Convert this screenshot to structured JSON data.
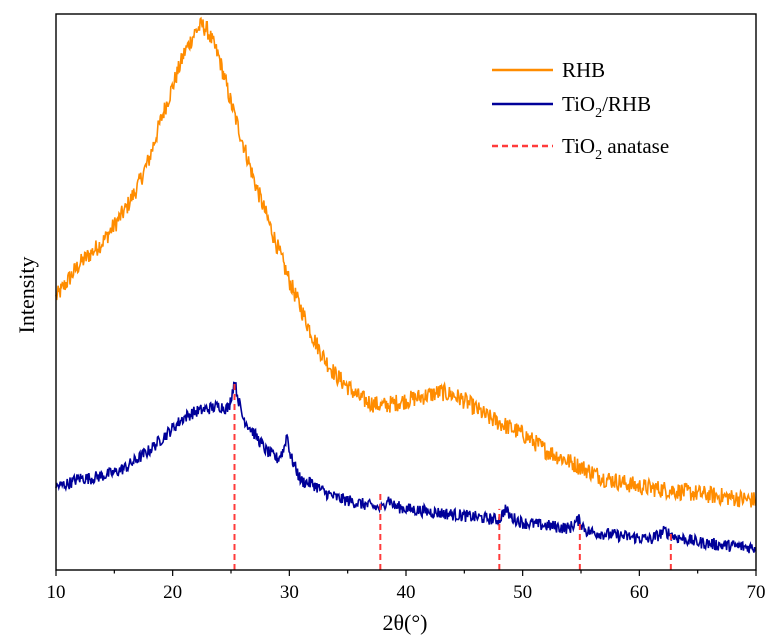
{
  "chart_data": {
    "type": "line",
    "title": "",
    "xlabel": "2θ(°)",
    "ylabel": "Intensity",
    "xlim": [
      10,
      70
    ],
    "xticks": [
      10,
      20,
      30,
      40,
      50,
      60,
      70
    ],
    "ylim": [
      0,
      100
    ],
    "y_tick_labels_shown": false,
    "grid": false,
    "legend_position": "top-right",
    "series": [
      {
        "name": "RHB",
        "color": "#ff8c00",
        "x": [
          10,
          11,
          12,
          13,
          14,
          15,
          16,
          17,
          18,
          19,
          20,
          21,
          22,
          22.5,
          23,
          24,
          25,
          26,
          27,
          28,
          29,
          30,
          31,
          32,
          33,
          34,
          35,
          36,
          37,
          38,
          39,
          40,
          41,
          42,
          43,
          44,
          45,
          46,
          47,
          48,
          49,
          50,
          51,
          52,
          53,
          54,
          55,
          56,
          57,
          58,
          59,
          60,
          62,
          64,
          66,
          68,
          70
        ],
        "values": [
          49,
          52,
          55,
          57,
          59,
          62,
          65,
          69,
          74,
          81,
          87,
          93,
          97,
          98,
          97,
          92,
          84,
          77,
          70,
          64,
          58,
          52,
          47,
          42,
          38,
          35,
          33,
          31,
          30,
          29.5,
          30,
          30.5,
          31,
          31.5,
          32,
          31.5,
          30.5,
          29,
          27.5,
          26.5,
          25.5,
          24.5,
          23,
          21.5,
          20.5,
          19.5,
          18.5,
          17.5,
          16.5,
          16,
          15.5,
          15,
          14.5,
          14,
          13.5,
          13,
          12.5
        ]
      },
      {
        "name": "TiO2/RHB",
        "color": "#000099",
        "x": [
          10,
          11,
          12,
          13,
          14,
          15,
          16,
          17,
          18,
          19,
          20,
          21,
          22,
          23,
          24,
          24.8,
          25.3,
          25.6,
          26,
          26.5,
          27,
          28,
          29,
          29.5,
          29.8,
          30.1,
          31,
          32,
          33,
          34,
          35,
          36,
          37,
          38,
          38.4,
          39,
          40,
          42,
          44,
          46,
          48,
          48.5,
          49,
          50,
          52,
          54,
          54.8,
          55.5,
          57,
          59,
          61,
          62.2,
          63,
          65,
          67,
          70
        ],
        "values": [
          15,
          15.5,
          16.5,
          16.5,
          17,
          17.5,
          18.5,
          20,
          21.5,
          23.5,
          25.5,
          27.5,
          28.5,
          29,
          29.5,
          29,
          34,
          31,
          27.5,
          26,
          24.5,
          21.5,
          20,
          21.5,
          24.5,
          20.5,
          16,
          15.5,
          14,
          13,
          12.5,
          12,
          11.5,
          11,
          13,
          11.5,
          11,
          10.5,
          10,
          9.5,
          9,
          11,
          9.5,
          8.5,
          8,
          7.5,
          9,
          7,
          6.5,
          6,
          5.5,
          7,
          6,
          5,
          4.5,
          4
        ]
      }
    ],
    "reference_lines": {
      "name": "TiO2 anatase",
      "color": "#ff3b3b",
      "style": "dashed",
      "x": [
        25.3,
        37.8,
        48.0,
        54.9,
        62.7
      ],
      "heights": [
        34,
        14,
        11,
        9,
        7
      ]
    }
  },
  "legend": {
    "items": [
      {
        "label": "RHB",
        "color": "#ff8c00",
        "style": "solid"
      },
      {
        "label_prefix": "TiO",
        "label_sub": "2",
        "label_suffix": "/RHB",
        "color": "#000099",
        "style": "solid"
      },
      {
        "label_prefix": "TiO",
        "label_sub": "2",
        "label_suffix": " anatase",
        "color": "#ff3b3b",
        "style": "dashed"
      }
    ]
  },
  "axes": {
    "xlabel": "2θ(°)",
    "ylabel": "Intensity",
    "xtick_labels": [
      "10",
      "20",
      "30",
      "40",
      "50",
      "60",
      "70"
    ]
  }
}
